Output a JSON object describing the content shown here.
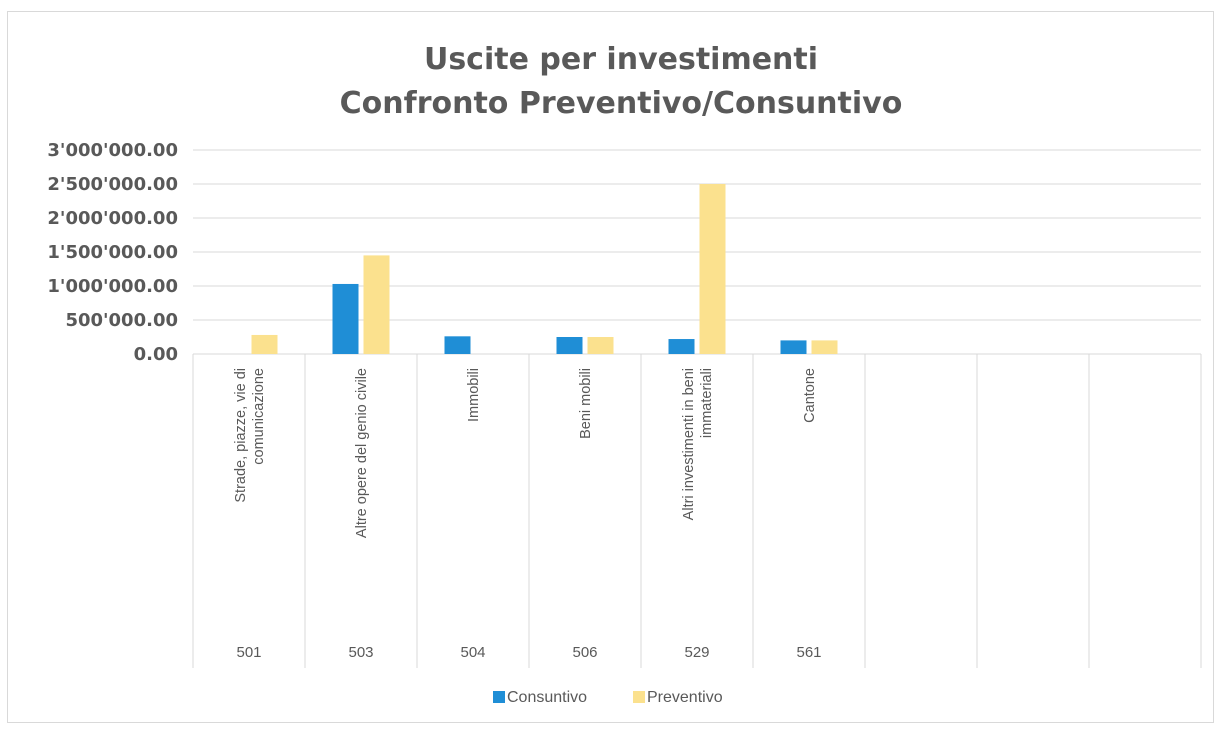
{
  "chart_data": {
    "type": "bar",
    "title": [
      "Uscite per investimenti",
      "Confronto Preventivo/Consuntivo"
    ],
    "xlabel": "",
    "ylabel": "",
    "ylim": [
      0,
      3000000
    ],
    "yticks": [
      0,
      500000,
      1000000,
      1500000,
      2000000,
      2500000,
      3000000
    ],
    "ytick_labels": [
      "0.00",
      "500'000.00",
      "1'000'000.00",
      "1'500'000.00",
      "2'000'000.00",
      "2'500'000.00",
      "3'000'000.00"
    ],
    "grid": true,
    "legend_position": "bottom",
    "categories": [
      {
        "code": "501",
        "label": [
          "Strade, piazze, vie di",
          "comunicazione"
        ]
      },
      {
        "code": "503",
        "label": [
          "Altre opere del genio civile"
        ]
      },
      {
        "code": "504",
        "label": [
          "Immobili"
        ]
      },
      {
        "code": "506",
        "label": [
          "Beni mobili"
        ]
      },
      {
        "code": "529",
        "label": [
          "Altri investimenti in beni",
          "immateriali"
        ]
      },
      {
        "code": "561",
        "label": [
          "Cantone"
        ]
      },
      {
        "code": "",
        "label": []
      },
      {
        "code": "",
        "label": []
      },
      {
        "code": "",
        "label": []
      }
    ],
    "series": [
      {
        "name": "Consuntivo",
        "color": "#1f8ed6",
        "values": [
          0,
          1030000,
          260000,
          250000,
          220000,
          200000,
          null,
          null,
          null
        ]
      },
      {
        "name": "Preventivo",
        "color": "#fbe18e",
        "values": [
          280000,
          1450000,
          0,
          250000,
          2500000,
          200000,
          null,
          null,
          null
        ]
      }
    ]
  }
}
